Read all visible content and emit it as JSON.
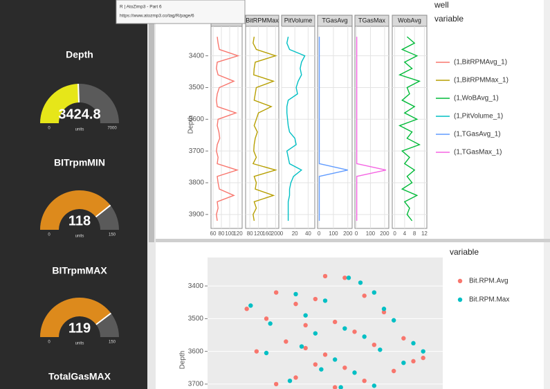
{
  "tooltip": {
    "title": "R | AtoZimp3 - Part 6",
    "url": "https://www.atozmp3.co/tag/R/page/6"
  },
  "gauges": [
    {
      "title": "Depth",
      "value": 3424.8,
      "min": 0,
      "max": 7000,
      "units": "units",
      "color": "#e6e619"
    },
    {
      "title": "BITrpmMIN",
      "value": 118,
      "min": 0,
      "max": 150,
      "units": "units",
      "color": "#dd8a1c"
    },
    {
      "title": "BITrpmMAX",
      "value": 119,
      "min": 0,
      "max": 150,
      "units": "units",
      "color": "#dd8a1c"
    },
    {
      "title": "TotalGasMAX"
    }
  ],
  "log_plot": {
    "y_label": "Depth",
    "ylim": [
      3307,
      3944
    ],
    "yticks": [
      3400,
      3500,
      3600,
      3700,
      3800,
      3900
    ],
    "legend_title": [
      "well",
      "variable"
    ],
    "depths": [
      3340,
      3360,
      3380,
      3400,
      3420,
      3440,
      3460,
      3480,
      3500,
      3520,
      3540,
      3560,
      3580,
      3600,
      3620,
      3640,
      3660,
      3680,
      3700,
      3720,
      3740,
      3760,
      3780,
      3800,
      3820,
      3840,
      3860,
      3880,
      3900,
      3920
    ],
    "panels": [
      {
        "strip": "BitRPMAvg",
        "color": "#f8766d",
        "xlim": [
          55,
          130
        ],
        "xticks": [
          60,
          80,
          100,
          120
        ],
        "values": [
          70,
          72,
          75,
          120,
          70,
          68,
          72,
          110,
          75,
          70,
          68,
          70,
          115,
          72,
          70,
          74,
          76,
          70,
          68,
          72,
          70,
          118,
          70,
          72,
          75,
          110,
          70,
          72,
          68,
          70
        ]
      },
      {
        "strip": "BitRPMMax",
        "color": "#b79f00",
        "xlim": [
          60,
          215
        ],
        "xticks": [
          80,
          120,
          160,
          200
        ],
        "values": [
          100,
          95,
          110,
          200,
          105,
          100,
          98,
          190,
          110,
          105,
          100,
          180,
          120,
          110,
          100,
          115,
          105,
          100,
          98,
          110,
          95,
          200,
          100,
          110,
          105,
          190,
          100,
          110,
          95,
          100
        ]
      },
      {
        "strip": "PitVolume",
        "color": "#00bfc4",
        "xlim": [
          0,
          50
        ],
        "xticks": [
          0,
          20,
          40
        ],
        "values": [
          10,
          8,
          12,
          35,
          30,
          28,
          30,
          25,
          22,
          24,
          10,
          8,
          8,
          9,
          10,
          12,
          20,
          22,
          8,
          10,
          12,
          30,
          18,
          14,
          12,
          12,
          10,
          10,
          10,
          10
        ]
      },
      {
        "strip": "TGasAvg",
        "color": "#619cff",
        "xlim": [
          -10,
          230
        ],
        "xticks": [
          0,
          100,
          200
        ],
        "values": [
          2,
          2,
          2,
          2,
          2,
          2,
          2,
          2,
          2,
          2,
          2,
          2,
          2,
          2,
          2,
          2,
          2,
          2,
          2,
          2,
          2,
          200,
          2,
          2,
          2,
          2,
          2,
          2,
          2,
          2
        ]
      },
      {
        "strip": "TGasMax",
        "color": "#f564e3",
        "xlim": [
          -10,
          230
        ],
        "xticks": [
          0,
          100,
          200
        ],
        "values": [
          3,
          3,
          3,
          3,
          3,
          3,
          3,
          3,
          3,
          3,
          3,
          3,
          3,
          3,
          3,
          3,
          3,
          3,
          3,
          3,
          3,
          210,
          3,
          3,
          3,
          3,
          3,
          3,
          3,
          3
        ]
      },
      {
        "strip": "WobAvg",
        "color": "#00ba38",
        "xlim": [
          -1,
          13
        ],
        "xticks": [
          0,
          4,
          8,
          12
        ],
        "values": [
          5,
          8,
          3,
          9,
          4,
          7,
          2,
          10,
          5,
          6,
          3,
          8,
          4,
          9,
          2,
          7,
          5,
          10,
          3,
          6,
          4,
          8,
          5,
          7,
          3,
          9,
          4,
          6,
          5,
          7
        ]
      }
    ],
    "legend": [
      {
        "label": "(1,BitRPMAvg_1)",
        "color": "#f8766d"
      },
      {
        "label": "(1,BitRPMMax_1)",
        "color": "#b79f00"
      },
      {
        "label": "(1,WoBAvg_1)",
        "color": "#00ba38"
      },
      {
        "label": "(1,PitVolume_1)",
        "color": "#00bfc4"
      },
      {
        "label": "(1,TGasAvg_1)",
        "color": "#619cff"
      },
      {
        "label": "(1,TGasMax_1)",
        "color": "#f564e3"
      }
    ]
  },
  "scatter_plot": {
    "y_label": "Depth",
    "legend_title": "variable",
    "ylim": [
      3313,
      3715
    ],
    "yticks": [
      3400,
      3500,
      3600,
      3700
    ],
    "xlim": [
      40,
      160
    ],
    "series": [
      {
        "name": "Bit.RPM.Avg",
        "color": "#f8766d",
        "x": [
          100,
          110,
          75,
          95,
          120,
          60,
          85,
          130,
          70,
          105,
          90,
          115,
          140,
          80,
          125,
          65,
          100,
          150,
          95,
          110,
          135,
          85,
          120,
          75,
          105,
          145,
          90
        ],
        "y": [
          3370,
          3375,
          3420,
          3440,
          3430,
          3470,
          3455,
          3480,
          3500,
          3510,
          3520,
          3540,
          3560,
          3570,
          3580,
          3600,
          3610,
          3620,
          3640,
          3650,
          3660,
          3680,
          3690,
          3700,
          3710,
          3630,
          3590
        ]
      },
      {
        "name": "Bit.RPM.Max",
        "color": "#00bfc4",
        "x": [
          112,
          118,
          85,
          100,
          125,
          130,
          62,
          90,
          135,
          72,
          110,
          95,
          120,
          145,
          88,
          128,
          70,
          105,
          140,
          98,
          115,
          150,
          82,
          125,
          108
        ],
        "y": [
          3375,
          3390,
          3425,
          3445,
          3420,
          3470,
          3460,
          3490,
          3505,
          3515,
          3530,
          3545,
          3555,
          3575,
          3585,
          3595,
          3605,
          3625,
          3635,
          3655,
          3665,
          3600,
          3690,
          3705,
          3710
        ]
      }
    ]
  }
}
